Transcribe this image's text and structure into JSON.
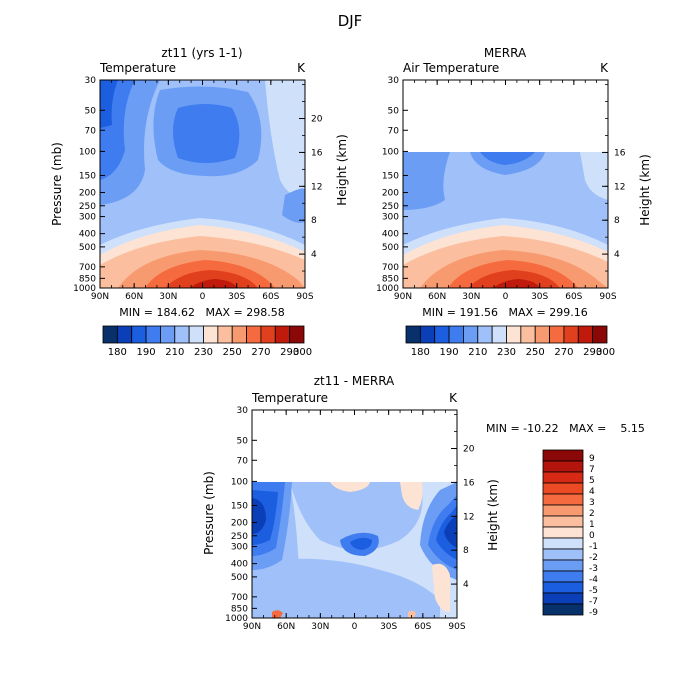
{
  "page": {
    "title": "DJF"
  },
  "chart_data": [
    {
      "type": "heatmap",
      "title": "zt11 (yrs 1-1)",
      "subtitle_left": "Temperature",
      "subtitle_right": "K",
      "ylabel": "Pressure (mb)",
      "ylabel_right": "Height (km)",
      "xticks": [
        "90N",
        "60N",
        "30N",
        "0",
        "30S",
        "60S",
        "90S"
      ],
      "yticks": [
        "30",
        "50",
        "70",
        "100",
        "150",
        "200",
        "250",
        "300",
        "400",
        "500",
        "700",
        "850",
        "1000"
      ],
      "yticks_right": [
        "20",
        "16",
        "12",
        "8",
        "4"
      ],
      "stats": "MIN = 184.62   MAX = 298.58",
      "colorbar_labels": [
        "180",
        "190",
        "210",
        "230",
        "250",
        "270",
        "290",
        "300"
      ],
      "colorbar_levels": [
        180,
        185,
        190,
        200,
        210,
        220,
        230,
        240,
        250,
        260,
        270,
        280,
        290,
        295,
        300
      ],
      "min": 184.62,
      "max": 298.58,
      "colors": {
        "n6": "#08306b",
        "n5": "#0a3fb8",
        "n4": "#1c5ee0",
        "n3": "#3e7cf0",
        "n2": "#6b9df5",
        "n1": "#9fc0f8",
        "n0": "#cfe0fb",
        "w0": "#fde3d4",
        "w1": "#fbbf9f",
        "w2": "#f89a70",
        "w3": "#f56a3e",
        "w4": "#e0401d",
        "w5": "#c01a0c",
        "w6": "#8a0808"
      }
    },
    {
      "type": "heatmap",
      "title": "MERRA",
      "subtitle_left": "Air Temperature",
      "subtitle_right": "K",
      "ylabel": "",
      "ylabel_right": "Height (km)",
      "xticks": [
        "90N",
        "60N",
        "30N",
        "0",
        "30S",
        "60S",
        "90S"
      ],
      "yticks": [
        "30",
        "50",
        "70",
        "100",
        "150",
        "200",
        "250",
        "300",
        "400",
        "500",
        "700",
        "850",
        "1000"
      ],
      "yticks_right": [
        "16",
        "12",
        "8",
        "4"
      ],
      "stats": "MIN = 191.56   MAX = 299.16",
      "colorbar_labels": [
        "180",
        "190",
        "210",
        "230",
        "250",
        "270",
        "290",
        "300"
      ],
      "min": 191.56,
      "max": 299.16,
      "data_top_pressure": 100
    },
    {
      "type": "heatmap",
      "title": "zt11 - MERRA",
      "subtitle_left": "Temperature",
      "subtitle_right": "K",
      "ylabel": "Pressure (mb)",
      "ylabel_right": "Height (km)",
      "xticks": [
        "90N",
        "60N",
        "30N",
        "0",
        "30S",
        "60S",
        "90S"
      ],
      "yticks": [
        "30",
        "50",
        "70",
        "100",
        "150",
        "200",
        "250",
        "300",
        "400",
        "500",
        "700",
        "850",
        "1000"
      ],
      "yticks_right": [
        "20",
        "16",
        "12",
        "8",
        "4"
      ],
      "stats": "MIN = -10.22   MAX =    5.15",
      "colorbar_labels": [
        "9",
        "7",
        "5",
        "4",
        "3",
        "2",
        "1",
        "0",
        "-1",
        "-2",
        "-3",
        "-4",
        "-5",
        "-7",
        "-9"
      ],
      "min": -10.22,
      "max": 5.15,
      "data_top_pressure": 100,
      "colors": {
        "p9": "#8a0808",
        "p7": "#b3140c",
        "p5": "#d62a14",
        "p4": "#ec4a22",
        "p3": "#f56a3e",
        "p2": "#f89a70",
        "p1": "#fbbf9f",
        "p0": "#fde3d4",
        "m1": "#cfe0fb",
        "m2": "#9fc0f8",
        "m3": "#6b9df5",
        "m4": "#3e7cf0",
        "m5": "#1c5ee0",
        "m7": "#0a3fb8",
        "m9": "#08306b"
      }
    }
  ]
}
